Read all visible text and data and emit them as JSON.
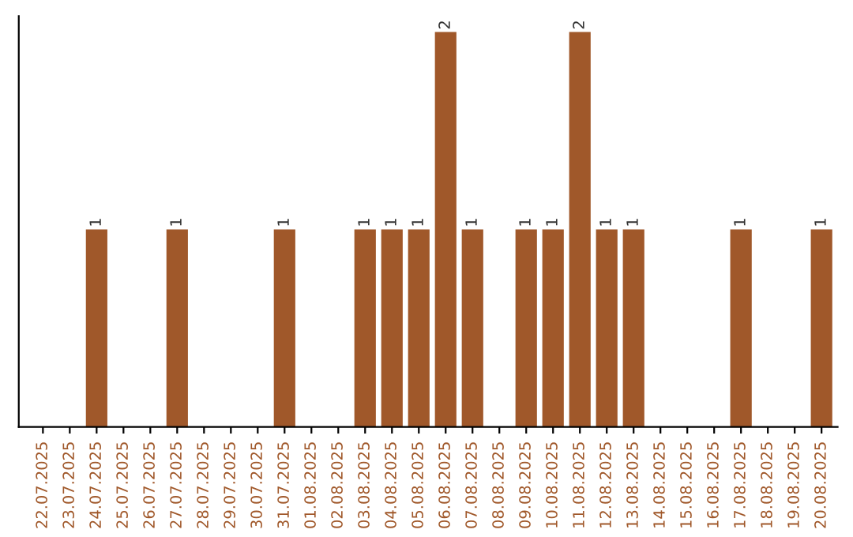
{
  "chart_data": {
    "type": "bar",
    "categories": [
      "22.07.2025",
      "23.07.2025",
      "24.07.2025",
      "25.07.2025",
      "26.07.2025",
      "27.07.2025",
      "28.07.2025",
      "29.07.2025",
      "30.07.2025",
      "31.07.2025",
      "01.08.2025",
      "02.08.2025",
      "03.08.2025",
      "04.08.2025",
      "05.08.2025",
      "06.08.2025",
      "07.08.2025",
      "08.08.2025",
      "09.08.2025",
      "10.08.2025",
      "11.08.2025",
      "12.08.2025",
      "13.08.2025",
      "14.08.2025",
      "15.08.2025",
      "16.08.2025",
      "17.08.2025",
      "18.08.2025",
      "19.08.2025",
      "20.08.2025"
    ],
    "values": [
      0,
      0,
      1,
      0,
      0,
      1,
      0,
      0,
      0,
      1,
      0,
      0,
      1,
      1,
      1,
      2,
      1,
      0,
      1,
      1,
      2,
      1,
      1,
      0,
      0,
      0,
      1,
      0,
      0,
      1
    ],
    "value_labels": [
      null,
      null,
      "1",
      null,
      null,
      "1",
      null,
      null,
      null,
      "1",
      null,
      null,
      "1",
      "1",
      "1",
      "2",
      "1",
      null,
      "1",
      "1",
      "2",
      "1",
      "1",
      null,
      null,
      null,
      "1",
      null,
      null,
      "1"
    ],
    "color": "#a0582a",
    "ylim": [
      0,
      2.08
    ],
    "tick_labels": "x",
    "grid": false,
    "legend": false
  }
}
